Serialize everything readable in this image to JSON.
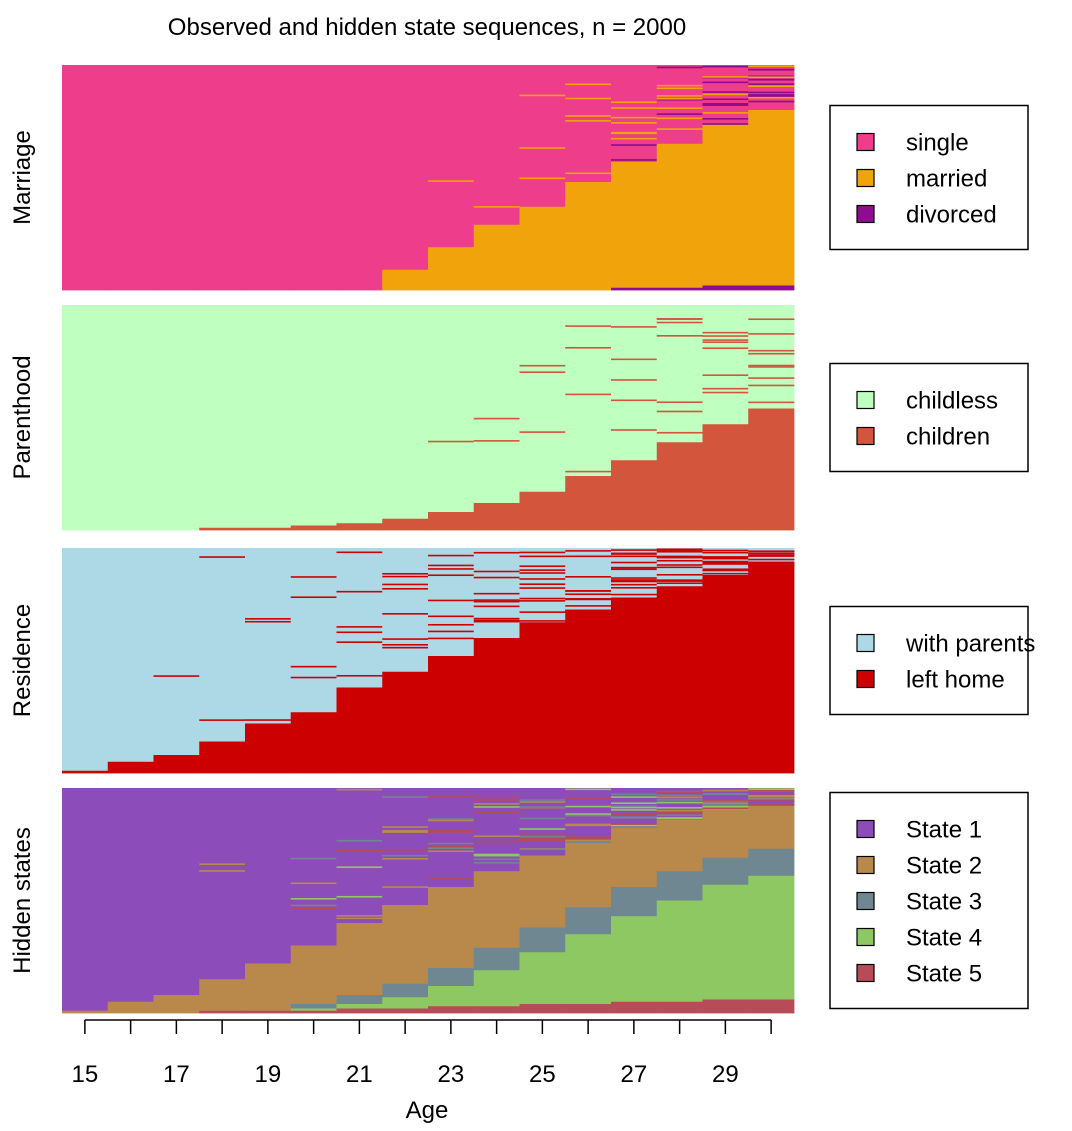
{
  "chart_data": {
    "type": "heatmap",
    "title": "Observed and hidden state sequences, n = 2000",
    "xlabel": "Age",
    "x_ticks": [
      "15",
      "17",
      "19",
      "21",
      "23",
      "25",
      "27",
      "29"
    ],
    "x_range": [
      15,
      30
    ],
    "ages": [
      15,
      16,
      17,
      18,
      19,
      20,
      21,
      22,
      23,
      24,
      25,
      26,
      27,
      28,
      29,
      30
    ],
    "channels": [
      {
        "name": "Marriage",
        "states": [
          {
            "label": "single",
            "color": "#EE3D8B"
          },
          {
            "label": "married",
            "color": "#F0A30A"
          },
          {
            "label": "divorced",
            "color": "#8E0D8E"
          }
        ],
        "share_by_age": [
          [
            1.0,
            0.0,
            0.0
          ],
          [
            1.0,
            0.0,
            0.0
          ],
          [
            1.0,
            0.0,
            0.0
          ],
          [
            1.0,
            0.0,
            0.0
          ],
          [
            1.0,
            0.0,
            0.0
          ],
          [
            1.0,
            0.0,
            0.0
          ],
          [
            1.0,
            0.0,
            0.0
          ],
          [
            0.91,
            0.09,
            0.0
          ],
          [
            0.81,
            0.19,
            0.0
          ],
          [
            0.71,
            0.29,
            0.0
          ],
          [
            0.63,
            0.37,
            0.0
          ],
          [
            0.52,
            0.48,
            0.0
          ],
          [
            0.43,
            0.56,
            0.01
          ],
          [
            0.35,
            0.64,
            0.01
          ],
          [
            0.26,
            0.72,
            0.02
          ],
          [
            0.2,
            0.78,
            0.02
          ]
        ]
      },
      {
        "name": "Parenthood",
        "states": [
          {
            "label": "childless",
            "color": "#BFFFBF"
          },
          {
            "label": "children",
            "color": "#D2553C"
          }
        ],
        "share_by_age": [
          [
            1.0,
            0.0
          ],
          [
            1.0,
            0.0
          ],
          [
            1.0,
            0.0
          ],
          [
            0.99,
            0.01
          ],
          [
            0.99,
            0.01
          ],
          [
            0.98,
            0.02
          ],
          [
            0.97,
            0.03
          ],
          [
            0.95,
            0.05
          ],
          [
            0.92,
            0.08
          ],
          [
            0.88,
            0.12
          ],
          [
            0.83,
            0.17
          ],
          [
            0.76,
            0.24
          ],
          [
            0.69,
            0.31
          ],
          [
            0.61,
            0.39
          ],
          [
            0.53,
            0.47
          ],
          [
            0.46,
            0.54
          ]
        ]
      },
      {
        "name": "Residence",
        "states": [
          {
            "label": "with parents",
            "color": "#ADD8E6"
          },
          {
            "label": "left home",
            "color": "#CD0000"
          }
        ],
        "share_by_age": [
          [
            0.99,
            0.01
          ],
          [
            0.95,
            0.05
          ],
          [
            0.92,
            0.08
          ],
          [
            0.86,
            0.14
          ],
          [
            0.78,
            0.22
          ],
          [
            0.73,
            0.27
          ],
          [
            0.62,
            0.38
          ],
          [
            0.55,
            0.45
          ],
          [
            0.48,
            0.52
          ],
          [
            0.4,
            0.6
          ],
          [
            0.33,
            0.67
          ],
          [
            0.28,
            0.72
          ],
          [
            0.22,
            0.78
          ],
          [
            0.17,
            0.83
          ],
          [
            0.12,
            0.88
          ],
          [
            0.08,
            0.92
          ]
        ]
      },
      {
        "name": "Hidden states",
        "states": [
          {
            "label": "State 1",
            "color": "#8C4DBA"
          },
          {
            "label": "State 2",
            "color": "#B8894B"
          },
          {
            "label": "State 3",
            "color": "#6F8791"
          },
          {
            "label": "State 4",
            "color": "#8DC863"
          },
          {
            "label": "State 5",
            "color": "#B54C58"
          }
        ],
        "share_by_age": [
          [
            0.99,
            0.01,
            0.0,
            0.0,
            0.0
          ],
          [
            0.95,
            0.05,
            0.0,
            0.0,
            0.0
          ],
          [
            0.92,
            0.08,
            0.0,
            0.0,
            0.0
          ],
          [
            0.85,
            0.14,
            0.0,
            0.0,
            0.01
          ],
          [
            0.78,
            0.21,
            0.0,
            0.0,
            0.01
          ],
          [
            0.7,
            0.26,
            0.02,
            0.01,
            0.01
          ],
          [
            0.6,
            0.32,
            0.04,
            0.02,
            0.02
          ],
          [
            0.52,
            0.35,
            0.06,
            0.05,
            0.02
          ],
          [
            0.44,
            0.36,
            0.08,
            0.09,
            0.03
          ],
          [
            0.37,
            0.34,
            0.1,
            0.16,
            0.03
          ],
          [
            0.3,
            0.32,
            0.11,
            0.23,
            0.04
          ],
          [
            0.24,
            0.29,
            0.12,
            0.31,
            0.04
          ],
          [
            0.18,
            0.26,
            0.13,
            0.38,
            0.05
          ],
          [
            0.14,
            0.23,
            0.13,
            0.45,
            0.05
          ],
          [
            0.1,
            0.21,
            0.12,
            0.51,
            0.06
          ],
          [
            0.08,
            0.19,
            0.12,
            0.55,
            0.06
          ]
        ]
      }
    ]
  }
}
